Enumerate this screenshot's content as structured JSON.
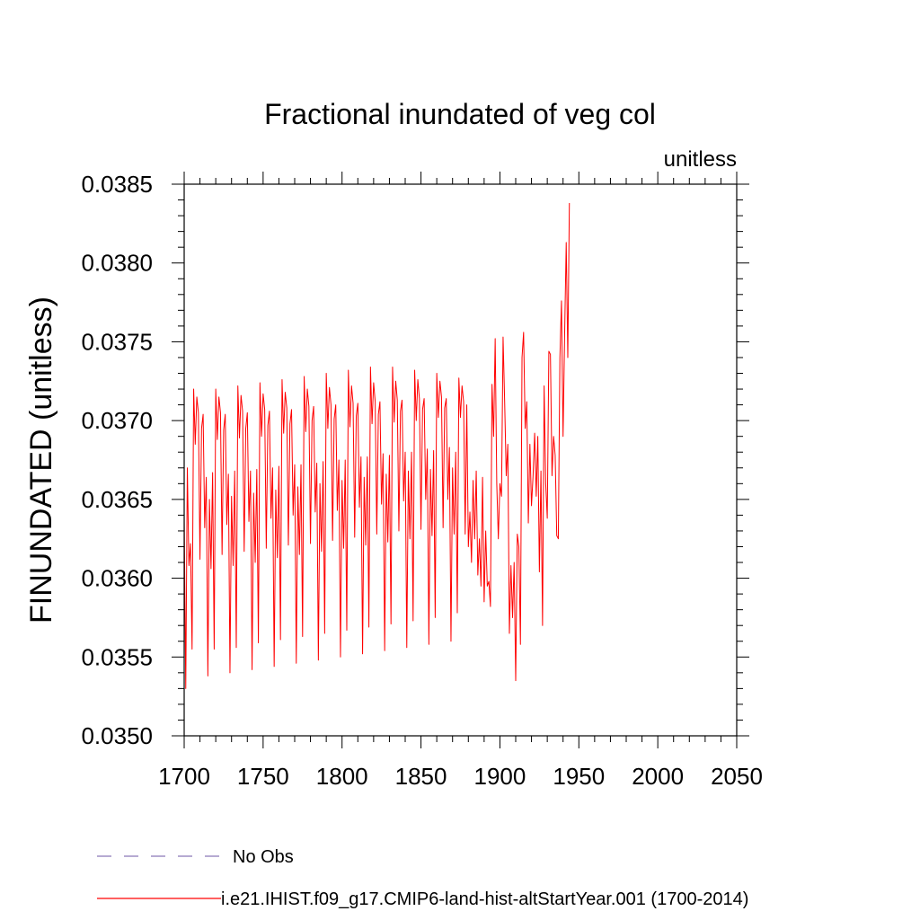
{
  "chart_data": {
    "type": "line",
    "title": "Fractional inundated of veg col",
    "units_label": "unitless",
    "xlabel": "",
    "ylabel": "FINUNDATED  (unitless)",
    "xlim": [
      1700,
      2050
    ],
    "ylim": [
      0.035,
      0.0385
    ],
    "x_ticks": [
      "1700",
      "1750",
      "1800",
      "1850",
      "1900",
      "1950",
      "2000",
      "2050"
    ],
    "y_ticks": [
      "0.0350",
      "0.0355",
      "0.0360",
      "0.0365",
      "0.0370",
      "0.0375",
      "0.0380",
      "0.0385"
    ],
    "grid": false,
    "legend_position": "bottom",
    "series": [
      {
        "name": "No Obs",
        "color": "#8a78b8",
        "style": "dashed",
        "x": [],
        "y": []
      },
      {
        "name": "i.e21.IHIST.f09_g17.CMIP6-land-hist-altStartYear.001 (1700-2014)",
        "color": "#ff0000",
        "style": "solid",
        "x_start": 1700,
        "x_step": 1,
        "y": [
          0.0364,
          0.0353,
          0.0367,
          0.03608,
          0.03622,
          0.03555,
          0.0372,
          0.03685,
          0.03715,
          0.03705,
          0.03612,
          0.03695,
          0.03704,
          0.03632,
          0.03664,
          0.03538,
          0.0365,
          0.03606,
          0.03667,
          0.03555,
          0.0372,
          0.03688,
          0.03715,
          0.03705,
          0.03615,
          0.03694,
          0.03704,
          0.03634,
          0.03666,
          0.0354,
          0.03652,
          0.03608,
          0.03668,
          0.03556,
          0.03722,
          0.03689,
          0.03716,
          0.03706,
          0.03617,
          0.03695,
          0.03705,
          0.03636,
          0.03668,
          0.03542,
          0.03654,
          0.0361,
          0.03669,
          0.03559,
          0.03724,
          0.0369,
          0.03717,
          0.03707,
          0.03619,
          0.03697,
          0.03706,
          0.03638,
          0.0367,
          0.03544,
          0.03656,
          0.03613,
          0.03671,
          0.03561,
          0.03726,
          0.03692,
          0.03718,
          0.03708,
          0.03621,
          0.03698,
          0.03707,
          0.0364,
          0.03672,
          0.03546,
          0.03658,
          0.03615,
          0.03672,
          0.03563,
          0.03728,
          0.03693,
          0.0372,
          0.03709,
          0.03622,
          0.037,
          0.03709,
          0.03642,
          0.03673,
          0.03548,
          0.0366,
          0.03617,
          0.03674,
          0.03565,
          0.0373,
          0.03695,
          0.03721,
          0.0371,
          0.03624,
          0.03701,
          0.0371,
          0.03643,
          0.03675,
          0.0355,
          0.03662,
          0.03619,
          0.03675,
          0.03567,
          0.03732,
          0.03696,
          0.03722,
          0.03711,
          0.03626,
          0.03703,
          0.03711,
          0.03645,
          0.03677,
          0.03552,
          0.03664,
          0.03621,
          0.03677,
          0.03569,
          0.03734,
          0.03698,
          0.03724,
          0.03712,
          0.03628,
          0.03704,
          0.03712,
          0.03647,
          0.03679,
          0.03554,
          0.03666,
          0.03623,
          0.03678,
          0.03571,
          0.03734,
          0.03699,
          0.03725,
          0.03713,
          0.0363,
          0.03706,
          0.03713,
          0.03649,
          0.0368,
          0.03556,
          0.03668,
          0.03625,
          0.0368,
          0.03573,
          0.03732,
          0.037,
          0.03726,
          0.03714,
          0.03631,
          0.03707,
          0.03714,
          0.0365,
          0.03682,
          0.03558,
          0.03669,
          0.03627,
          0.03681,
          0.03575,
          0.0373,
          0.03702,
          0.03725,
          0.03715,
          0.03632,
          0.03708,
          0.03714,
          0.0365,
          0.03683,
          0.0356,
          0.0367,
          0.03628,
          0.0368,
          0.03578,
          0.03727,
          0.03702,
          0.03722,
          0.03712,
          0.03628,
          0.0371,
          0.0362,
          0.03642,
          0.0361,
          0.03662,
          0.03625,
          0.03668,
          0.03602,
          0.03625,
          0.03595,
          0.03664,
          0.03585,
          0.0363,
          0.03595,
          0.03598,
          0.03582,
          0.03723,
          0.0369,
          0.03752,
          0.0366,
          0.03625,
          0.0366,
          0.03652,
          0.03753,
          0.03712,
          0.03665,
          0.03685,
          0.03565,
          0.03608,
          0.03575,
          0.0361,
          0.03535,
          0.03628,
          0.0362,
          0.03558,
          0.0374,
          0.03756,
          0.03695,
          0.03712,
          0.03635,
          0.03685,
          0.03646,
          0.03665,
          0.03692,
          0.03652,
          0.0369,
          0.03604,
          0.03668,
          0.0357,
          0.03722,
          0.0366,
          0.03638,
          0.03744,
          0.03742,
          0.03665,
          0.0369,
          0.03678,
          0.03627,
          0.03625,
          0.0374,
          0.03776,
          0.0369,
          0.03755,
          0.03813,
          0.0374,
          0.03838
        ]
      }
    ]
  }
}
